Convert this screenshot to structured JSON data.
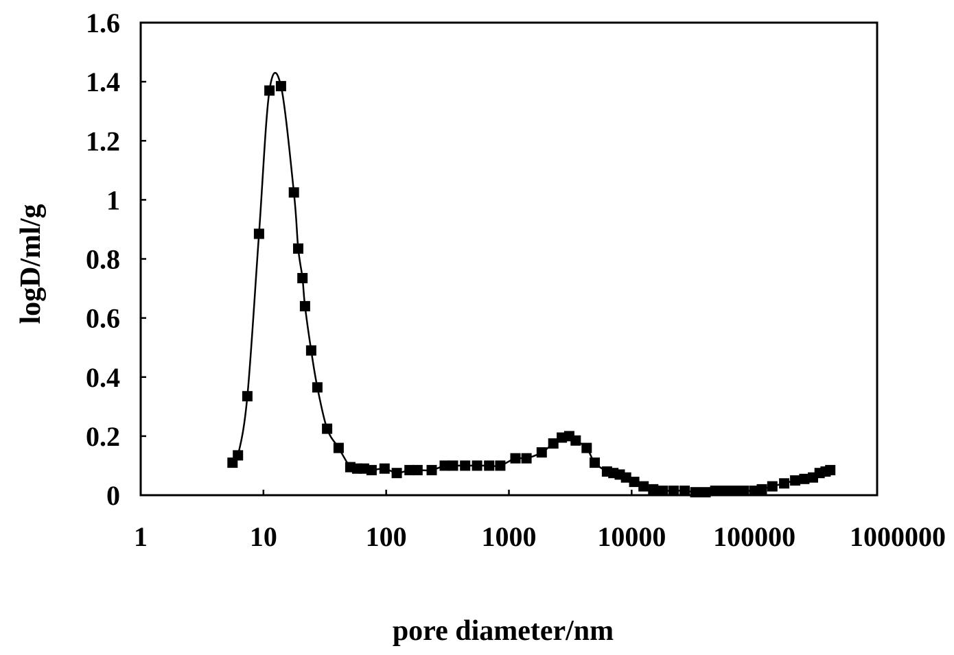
{
  "chart_data": {
    "type": "scatter",
    "title": "",
    "xlabel": "pore diameter/nm",
    "ylabel": "logD/ml/g",
    "xscale": "log",
    "xlim": [
      1,
      1000000
    ],
    "ylim": [
      0,
      1.6
    ],
    "xticks": [
      {
        "value": 1,
        "label": "1"
      },
      {
        "value": 10,
        "label": "10"
      },
      {
        "value": 100,
        "label": "100"
      },
      {
        "value": 1000,
        "label": "1000"
      },
      {
        "value": 10000,
        "label": "10000"
      },
      {
        "value": 100000,
        "label": "100000"
      },
      {
        "value": 1000000,
        "label": "1000000"
      }
    ],
    "yticks": [
      {
        "value": 0,
        "label": "0"
      },
      {
        "value": 0.2,
        "label": "0.2"
      },
      {
        "value": 0.4,
        "label": "0.4"
      },
      {
        "value": 0.6,
        "label": "0.6"
      },
      {
        "value": 0.8,
        "label": "0.8"
      },
      {
        "value": 1.0,
        "label": "1"
      },
      {
        "value": 1.2,
        "label": "1.2"
      },
      {
        "value": 1.4,
        "label": "1.4"
      },
      {
        "value": 1.6,
        "label": "1.6"
      }
    ],
    "grid": false,
    "legend": "none",
    "marker": "square",
    "colors": {
      "series": "#000000",
      "axes": "#000000",
      "background": "#ffffff"
    },
    "series": [
      {
        "points": [
          [
            5.6,
            0.11
          ],
          [
            6.2,
            0.135
          ],
          [
            7.4,
            0.335
          ],
          [
            9.2,
            0.885
          ],
          [
            11.2,
            1.37
          ],
          [
            13.9,
            1.385
          ],
          [
            17.7,
            1.025
          ],
          [
            19.2,
            0.835
          ],
          [
            20.8,
            0.735
          ],
          [
            21.8,
            0.64
          ],
          [
            24.5,
            0.49
          ],
          [
            27.5,
            0.365
          ],
          [
            33.0,
            0.225
          ],
          [
            41.0,
            0.16
          ],
          [
            51.0,
            0.095
          ],
          [
            58.0,
            0.09
          ],
          [
            66.0,
            0.09
          ],
          [
            76.0,
            0.085
          ],
          [
            97.0,
            0.09
          ],
          [
            122.0,
            0.075
          ],
          [
            155.0,
            0.085
          ],
          [
            180.0,
            0.085
          ],
          [
            235.0,
            0.085
          ],
          [
            300.0,
            0.1
          ],
          [
            350.0,
            0.1
          ],
          [
            440.0,
            0.1
          ],
          [
            550.0,
            0.1
          ],
          [
            690.0,
            0.1
          ],
          [
            850.0,
            0.1
          ],
          [
            1130.0,
            0.125
          ],
          [
            1390.0,
            0.125
          ],
          [
            1850.0,
            0.145
          ],
          [
            2300.0,
            0.175
          ],
          [
            2700.0,
            0.195
          ],
          [
            3100.0,
            0.2
          ],
          [
            3500.0,
            0.185
          ],
          [
            4300.0,
            0.16
          ],
          [
            5000.0,
            0.11
          ],
          [
            6300.0,
            0.08
          ],
          [
            7100.0,
            0.075
          ],
          [
            8000.0,
            0.07
          ],
          [
            9000.0,
            0.06
          ],
          [
            10500.0,
            0.045
          ],
          [
            12500.0,
            0.03
          ],
          [
            15000.0,
            0.02
          ],
          [
            18000.0,
            0.015
          ],
          [
            22000.0,
            0.015
          ],
          [
            27000.0,
            0.015
          ],
          [
            33000.0,
            0.01
          ],
          [
            40000.0,
            0.01
          ],
          [
            48000.0,
            0.015
          ],
          [
            57000.0,
            0.015
          ],
          [
            68000.0,
            0.015
          ],
          [
            82000.0,
            0.015
          ],
          [
            100000.0,
            0.015
          ],
          [
            115000.0,
            0.02
          ],
          [
            140000.0,
            0.03
          ],
          [
            175000.0,
            0.04
          ],
          [
            215000.0,
            0.05
          ],
          [
            255000.0,
            0.055
          ],
          [
            300000.0,
            0.06
          ],
          [
            340000.0,
            0.075
          ],
          [
            380000.0,
            0.08
          ],
          [
            415000.0,
            0.085
          ]
        ]
      }
    ]
  }
}
